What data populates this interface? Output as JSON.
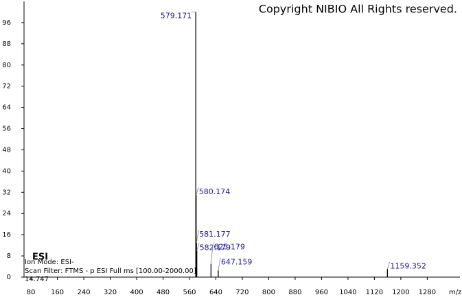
{
  "chart_data": {
    "type": "stem",
    "title": "Copyright NIBIO All Rights reserved.",
    "annotations": [
      "ESI",
      "Ion Mode: ESI-",
      "Scan Filter: FTMS - p ESI Full ms [100.00-2000.00]",
      "14.747"
    ],
    "xlabel": "m/z",
    "x": [
      579.171,
      580.174,
      581.177,
      582.179,
      625.179,
      647.159,
      1159.352
    ],
    "values": [
      100,
      31,
      13,
      10,
      5,
      2.5,
      3
    ],
    "color": "#000000",
    "label_color": "#1a1a8c",
    "xlim": [
      59,
      1379
    ],
    "ylim": [
      0,
      104
    ],
    "xticks": [
      80,
      160,
      240,
      320,
      400,
      480,
      560,
      640,
      720,
      800,
      880,
      960,
      1040,
      1120,
      1200,
      1280
    ],
    "yticks": [
      0,
      8,
      16,
      24,
      32,
      40,
      48,
      56,
      64,
      72,
      80,
      88,
      96
    ]
  }
}
